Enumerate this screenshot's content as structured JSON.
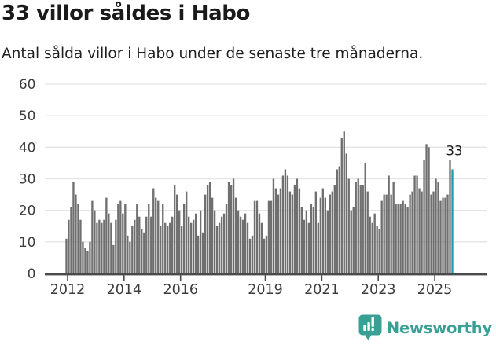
{
  "header": {
    "title": "33 villor såldes i Habo",
    "subtitle": "Antal sålda villor i Habo under de senaste tre månaderna."
  },
  "chart_data": {
    "type": "bar",
    "title": "33 villor såldes i Habo",
    "subtitle": "Antal sålda villor i Habo under de senaste tre månaderna.",
    "xlabel": "",
    "ylabel": "",
    "ylim": [
      0,
      60
    ],
    "grid": true,
    "y_ticks": [
      0,
      10,
      20,
      30,
      40,
      50,
      60
    ],
    "x_tick_years": [
      2012,
      2014,
      2016,
      2019,
      2021,
      2023,
      2025
    ],
    "start_year": 2012,
    "frequency": "monthly",
    "values": [
      11,
      17,
      21,
      29,
      25,
      22,
      17,
      10,
      8,
      7,
      10,
      23,
      20,
      16,
      17,
      16,
      17,
      24,
      19,
      16,
      9,
      17,
      22,
      23,
      19,
      22,
      12,
      10,
      15,
      17,
      22,
      18,
      14,
      13,
      18,
      22,
      18,
      27,
      24,
      23,
      15,
      22,
      16,
      15,
      16,
      18,
      28,
      25,
      20,
      15,
      22,
      26,
      18,
      16,
      17,
      19,
      12,
      20,
      13,
      25,
      28,
      29,
      24,
      20,
      15,
      16,
      18,
      19,
      22,
      29,
      28,
      30,
      24,
      20,
      18,
      17,
      19,
      16,
      11,
      12,
      23,
      23,
      19,
      16,
      11,
      12,
      23,
      23,
      30,
      27,
      25,
      27,
      31,
      33,
      31,
      26,
      25,
      28,
      30,
      27,
      21,
      17,
      20,
      16,
      22,
      21,
      26,
      16,
      24,
      27,
      24,
      20,
      25,
      26,
      28,
      33,
      34,
      43,
      45,
      38,
      30,
      20,
      21,
      29,
      30,
      28,
      28,
      35,
      26,
      18,
      16,
      19,
      15,
      14,
      23,
      25,
      25,
      31,
      25,
      29,
      22,
      22,
      22,
      23,
      22,
      21,
      25,
      26,
      31,
      31,
      27,
      26,
      36,
      41,
      40,
      25,
      26,
      30,
      29,
      23,
      24,
      24,
      25,
      36,
      33
    ],
    "highlight": {
      "position": "last",
      "value": 33,
      "label": "33",
      "color": "#14a1a7"
    },
    "bar_color": "#6f6f6f",
    "grid_color": "#e4e4e4",
    "axis_color": "#4a4a4a",
    "tick_label_color": "#3c3c3c",
    "annotation_color": "#1a1a1a",
    "legend": "none"
  },
  "footer": {
    "brand": "Newsworthy",
    "brand_color": "#3aa096",
    "logo_icon": "bar-chart-speech-bubble-icon"
  }
}
